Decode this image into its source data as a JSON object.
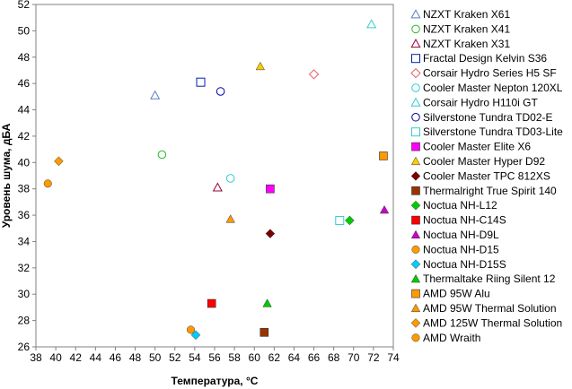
{
  "chart_data": {
    "type": "scatter",
    "title": "",
    "xlabel": "Температура, °C",
    "ylabel": "Уровень шума, дБА",
    "xlim": [
      38,
      74
    ],
    "ylim": [
      26,
      52
    ],
    "x_ticks": [
      "38",
      "40",
      "42",
      "44",
      "46",
      "48",
      "50",
      "52",
      "54",
      "56",
      "58",
      "60",
      "62",
      "64",
      "66",
      "68",
      "70",
      "72",
      "74"
    ],
    "y_ticks": [
      "26",
      "28",
      "30",
      "32",
      "34",
      "36",
      "38",
      "40",
      "42",
      "44",
      "46",
      "48",
      "50",
      "52"
    ],
    "grid": false,
    "legend_position": "right",
    "series": [
      {
        "name": "NZXT Kraken X61",
        "marker": "triangle",
        "filled": false,
        "color": "#5b7fc8",
        "x": 50.0,
        "y": 45.1
      },
      {
        "name": "NZXT Kraken X41",
        "marker": "circle",
        "filled": false,
        "color": "#22bb22",
        "x": 50.7,
        "y": 40.6
      },
      {
        "name": "NZXT Kraken X31",
        "marker": "triangle",
        "filled": false,
        "color": "#990033",
        "x": 56.3,
        "y": 38.1
      },
      {
        "name": "Fractal Design Kelvin S36",
        "marker": "square",
        "filled": false,
        "color": "#0022aa",
        "x": 54.6,
        "y": 46.1
      },
      {
        "name": "Corsair Hydro Series H5 SF",
        "marker": "diamond",
        "filled": false,
        "color": "#e06060",
        "x": 66.0,
        "y": 46.7
      },
      {
        "name": "Cooler Master Nepton 120XL",
        "marker": "circle",
        "filled": false,
        "color": "#33cccc",
        "x": 57.6,
        "y": 38.8
      },
      {
        "name": "Corsair Hydro H110i GT",
        "marker": "triangle",
        "filled": false,
        "color": "#33cccc",
        "x": 71.8,
        "y": 50.5
      },
      {
        "name": "Silverstone Tundra TD02-E",
        "marker": "circle",
        "filled": false,
        "color": "#0000aa",
        "x": 56.6,
        "y": 45.4
      },
      {
        "name": "Silverstone Tundra TD03-Lite",
        "marker": "square",
        "filled": false,
        "color": "#33cccc",
        "x": 68.6,
        "y": 35.6
      },
      {
        "name": "Cooler Master Elite X6",
        "marker": "square",
        "filled": true,
        "color": "#ff00ff",
        "x": 61.6,
        "y": 38.0
      },
      {
        "name": "Cooler Master Hyper D92",
        "marker": "triangle",
        "filled": true,
        "color": "#ffcc00",
        "x": 60.6,
        "y": 47.3
      },
      {
        "name": "Cooler Master TPC 812XS",
        "marker": "diamond",
        "filled": true,
        "color": "#7a0000",
        "x": 61.6,
        "y": 34.6
      },
      {
        "name": "Thermalright True Spirit 140",
        "marker": "square",
        "filled": true,
        "color": "#993300",
        "x": 61.0,
        "y": 27.1
      },
      {
        "name": "Noctua NH-L12",
        "marker": "diamond",
        "filled": true,
        "color": "#00cc00",
        "x": 69.6,
        "y": 35.6
      },
      {
        "name": "Noctua NH-C14S",
        "marker": "square",
        "filled": true,
        "color": "#ff0000",
        "x": 55.7,
        "y": 29.3
      },
      {
        "name": "Noctua NH-D9L",
        "marker": "triangle",
        "filled": true,
        "color": "#cc00cc",
        "x": 73.1,
        "y": 36.4
      },
      {
        "name": "Noctua NH-D15",
        "marker": "circle",
        "filled": true,
        "color": "#ff9900",
        "x": 53.6,
        "y": 27.3
      },
      {
        "name": "Noctua NH-D15S",
        "marker": "diamond",
        "filled": true,
        "color": "#00ccff",
        "x": 54.1,
        "y": 26.9
      },
      {
        "name": "Thermaltake Riing Silent 12",
        "marker": "triangle",
        "filled": true,
        "color": "#00cc00",
        "x": 61.3,
        "y": 29.3
      },
      {
        "name": "AMD 95W Alu",
        "marker": "square",
        "filled": true,
        "color": "#ff9900",
        "x": 73.0,
        "y": 40.5
      },
      {
        "name": "AMD 95W Thermal Solution",
        "marker": "triangle",
        "filled": true,
        "color": "#ff9900",
        "x": 57.6,
        "y": 35.7
      },
      {
        "name": "AMD 125W Thermal Solution",
        "marker": "diamond",
        "filled": true,
        "color": "#ff9900",
        "x": 40.3,
        "y": 40.1
      },
      {
        "name": "AMD Wraith",
        "marker": "circle",
        "filled": true,
        "color": "#ff9900",
        "x": 39.2,
        "y": 38.4
      }
    ]
  }
}
